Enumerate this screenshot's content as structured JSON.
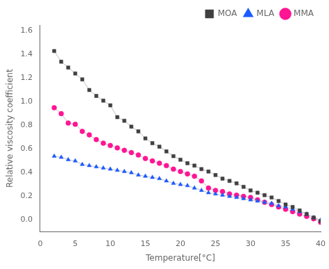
{
  "chart_data": {
    "type": "line",
    "x_label": "Temperature[°C]",
    "y_label": "Relative viscosity coefficient",
    "x": [
      2,
      3,
      4,
      5,
      6,
      7,
      8,
      9,
      10,
      11,
      12,
      13,
      14,
      15,
      16,
      17,
      18,
      19,
      20,
      21,
      22,
      23,
      24,
      25,
      26,
      27,
      28,
      29,
      30,
      31,
      32,
      33,
      34,
      35,
      36,
      37,
      38,
      39,
      40
    ],
    "color": "#c0c0c0",
    "series": [
      {
        "name": "MOA",
        "color": "#404040",
        "marker": "square",
        "values": [
          1.43,
          1.34,
          1.29,
          1.24,
          1.19,
          1.1,
          1.05,
          1.01,
          0.97,
          0.87,
          0.84,
          0.79,
          0.75,
          0.69,
          0.65,
          0.62,
          0.58,
          0.54,
          0.51,
          0.48,
          0.46,
          0.43,
          0.41,
          0.38,
          0.35,
          0.33,
          0.31,
          0.28,
          0.25,
          0.23,
          0.21,
          0.19,
          0.16,
          0.13,
          0.11,
          0.08,
          0.05,
          0.02,
          -0.01
        ]
      },
      {
        "name": "MLA",
        "color": "#1a5aff",
        "marker": "triangle",
        "values": [
          0.54,
          0.53,
          0.51,
          0.5,
          0.47,
          0.46,
          0.45,
          0.44,
          0.43,
          0.42,
          0.41,
          0.4,
          0.38,
          0.37,
          0.36,
          0.35,
          0.33,
          0.31,
          0.3,
          0.29,
          0.27,
          0.25,
          0.23,
          0.22,
          0.21,
          0.2,
          0.19,
          0.18,
          0.17,
          0.16,
          0.15,
          0.14,
          0.12,
          0.11,
          0.09,
          0.07,
          0.05,
          0.02,
          0.0
        ]
      },
      {
        "name": "MMA",
        "color": "#ff1493",
        "marker": "circle",
        "values": [
          0.95,
          0.9,
          0.82,
          0.81,
          0.75,
          0.72,
          0.68,
          0.65,
          0.63,
          0.61,
          0.59,
          0.57,
          0.55,
          0.52,
          0.5,
          0.48,
          0.46,
          0.43,
          0.41,
          0.39,
          0.37,
          0.33,
          0.27,
          0.25,
          0.24,
          0.22,
          0.21,
          0.2,
          0.19,
          0.17,
          0.15,
          0.13,
          0.11,
          0.09,
          0.07,
          0.05,
          0.03,
          0.01,
          -0.02
        ]
      }
    ],
    "xlim": [
      0,
      40
    ],
    "ylim": [
      -0.1,
      1.65
    ],
    "xticks": [
      0,
      5,
      10,
      15,
      20,
      25,
      30,
      35,
      40
    ],
    "yticks": [
      {
        "value": 0.0,
        "label": "0.0"
      },
      0.2,
      0.4,
      0.6,
      0.8,
      {
        "value": 1.0,
        "label": "1.0"
      },
      1.2,
      1.4,
      1.6
    ],
    "grid": false,
    "legend": "upper right"
  }
}
